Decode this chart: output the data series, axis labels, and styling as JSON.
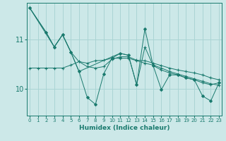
{
  "xlabel": "Humidex (Indice chaleur)",
  "background_color": "#cce8e8",
  "plot_bg_color": "#cce8e8",
  "grid_color": "#aad4d4",
  "line_color": "#1a7a6e",
  "x_ticks": [
    0,
    1,
    2,
    3,
    4,
    5,
    6,
    7,
    8,
    9,
    10,
    11,
    12,
    13,
    14,
    15,
    16,
    17,
    18,
    19,
    20,
    21,
    22,
    23
  ],
  "y_ticks": [
    10,
    11
  ],
  "ylim": [
    9.45,
    11.75
  ],
  "xlim": [
    -0.3,
    23.3
  ],
  "series": [
    {
      "y": [
        11.65,
        null,
        null,
        10.85,
        11.1,
        10.75,
        10.35,
        null,
        null,
        null,
        10.65,
        10.72,
        10.68,
        10.08,
        10.85,
        10.47,
        10.38,
        10.32,
        10.28,
        10.22,
        10.18,
        10.12,
        10.08,
        10.12
      ],
      "marker": "+"
    },
    {
      "y": [
        11.65,
        null,
        11.15,
        10.85,
        11.1,
        10.75,
        10.35,
        9.82,
        9.68,
        10.3,
        10.62,
        10.72,
        10.68,
        10.08,
        11.22,
        10.47,
        9.98,
        10.28,
        10.28,
        10.22,
        10.18,
        9.85,
        9.75,
        10.12
      ],
      "marker": "D"
    },
    {
      "y": [
        10.42,
        10.42,
        10.42,
        10.42,
        10.42,
        10.48,
        10.55,
        10.52,
        10.57,
        10.58,
        10.62,
        10.62,
        10.62,
        10.57,
        10.52,
        10.48,
        10.42,
        10.35,
        10.3,
        10.25,
        10.2,
        10.15,
        10.1,
        10.07
      ],
      "marker": "+"
    },
    {
      "y": [
        11.65,
        null,
        11.15,
        10.85,
        11.1,
        10.75,
        10.55,
        10.45,
        10.42,
        10.45,
        10.6,
        10.65,
        10.65,
        10.58,
        10.57,
        10.52,
        10.47,
        10.42,
        10.38,
        10.35,
        10.32,
        10.28,
        10.22,
        10.18
      ],
      "marker": "+"
    }
  ]
}
